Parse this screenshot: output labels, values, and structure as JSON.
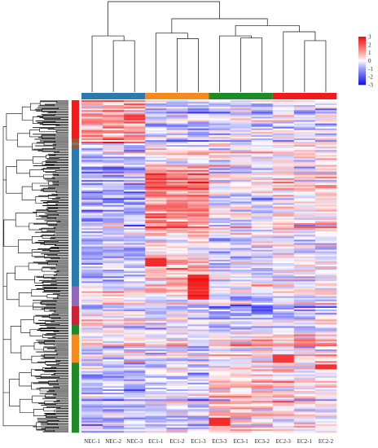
{
  "chart_data": {
    "type": "heatmap",
    "title": "",
    "xlabel": "",
    "ylabel": "",
    "samples": [
      "NEC-1",
      "NEC-2",
      "NEC-3",
      "EC1-1",
      "EC1-2",
      "EC1-3",
      "EC3-3",
      "EC3-1",
      "EC3-2",
      "EC2-3",
      "EC2-1",
      "EC2-2"
    ],
    "sample_groups": [
      {
        "samples": [
          "NEC-1",
          "NEC-2",
          "NEC-3"
        ],
        "color": "#2a7ab0"
      },
      {
        "samples": [
          "EC1-1",
          "EC1-2",
          "EC1-3"
        ],
        "color": "#f58a1f"
      },
      {
        "samples": [
          "EC3-3",
          "EC3-1",
          "EC3-2"
        ],
        "color": "#1f8a2a"
      },
      {
        "samples": [
          "EC2-3",
          "EC2-1",
          "EC2-2"
        ],
        "color": "#ee1c1c"
      }
    ],
    "row_cluster_colors": [
      {
        "color": "#ee1c1c",
        "fraction": 0.115
      },
      {
        "color": "#a0522d",
        "fraction": 0.012
      },
      {
        "color": "#777777",
        "fraction": 0.008
      },
      {
        "color": "#a0522d",
        "fraction": 0.01
      },
      {
        "color": "#2a7ab0",
        "fraction": 0.415
      },
      {
        "color": "#9467bd",
        "fraction": 0.06
      },
      {
        "color": "#cc2233",
        "fraction": 0.055
      },
      {
        "color": "#1f8a2a",
        "fraction": 0.03
      },
      {
        "color": "#f58a1f",
        "fraction": 0.085
      },
      {
        "color": "#1f8a2a",
        "fraction": 0.11
      },
      {
        "color": "#1f8a2a",
        "fraction": 0.1
      }
    ],
    "color_scale": {
      "min": -3,
      "max": 3,
      "ticks": [
        3,
        2,
        1,
        0,
        -1,
        -2,
        -3
      ],
      "low_color": "#1010f0",
      "mid_color": "#ffffff",
      "high_color": "#f01010"
    },
    "column_dendrogram": {
      "leaf_order": [
        "NEC-1",
        "NEC-2",
        "NEC-3",
        "EC1-1",
        "EC1-2",
        "EC1-3",
        "EC3-3",
        "EC3-1",
        "EC3-2",
        "EC2-3",
        "EC2-1",
        "EC2-2"
      ],
      "merges": [
        {
          "left": "NEC-2",
          "right": "NEC-3",
          "height": 0.75
        },
        {
          "left": "NEC-1",
          "right": "m0",
          "height": 0.82
        },
        {
          "left": "EC1-2",
          "right": "EC1-3",
          "height": 0.78
        },
        {
          "left": "EC1-1",
          "right": "m2",
          "height": 0.86
        },
        {
          "left": "EC3-1",
          "right": "EC3-2",
          "height": 0.79
        },
        {
          "left": "EC3-3",
          "right": "m4",
          "height": 0.82
        },
        {
          "left": "EC2-1",
          "right": "EC2-2",
          "height": 0.75
        },
        {
          "left": "EC2-3",
          "right": "m6",
          "height": 0.88
        },
        {
          "left": "m5",
          "right": "m7",
          "height": 0.97
        },
        {
          "left": "m3",
          "right": "m8",
          "height": 1.07
        },
        {
          "left": "m1",
          "right": "m9",
          "height": 1.32
        }
      ]
    },
    "row_count": 200
  }
}
